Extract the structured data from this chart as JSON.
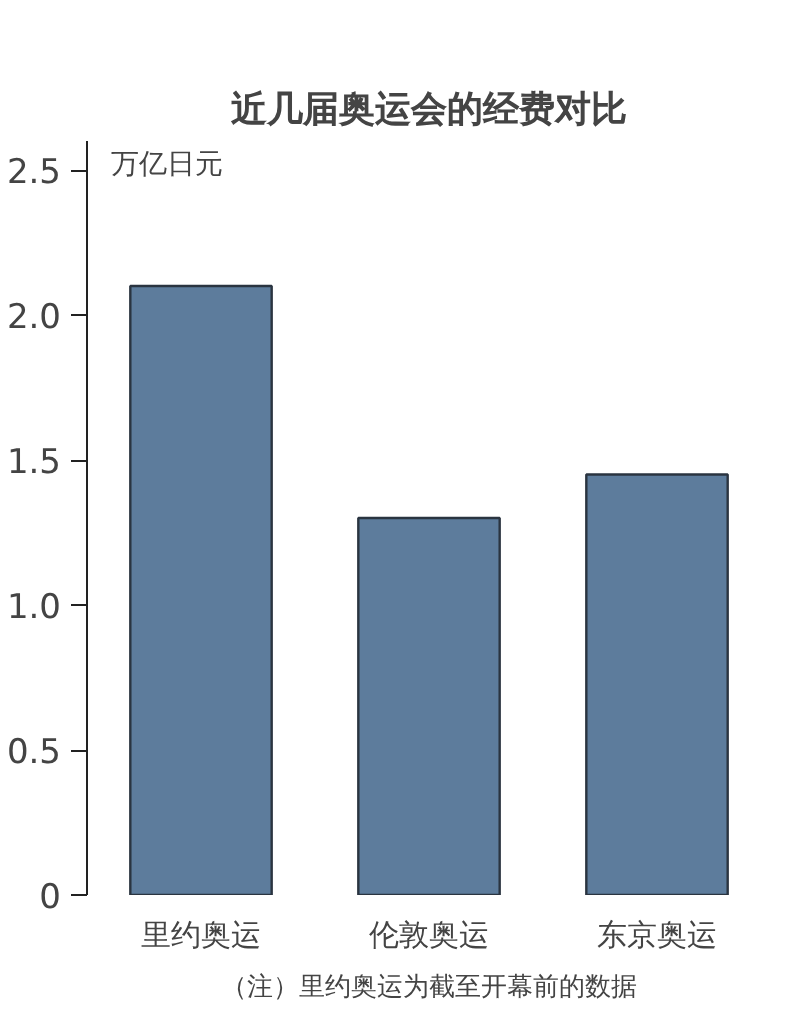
{
  "chart_data": {
    "type": "bar",
    "title": "近几届奥运会的经费对比",
    "ylabel": "万亿日元",
    "categories": [
      "里约奥运",
      "伦敦奥运",
      "东京奥运"
    ],
    "values": [
      2.1,
      1.3,
      1.45
    ],
    "color": "#5d7c9c",
    "ylim": [
      0,
      2.6
    ],
    "yticks": [
      0,
      0.5,
      {
        "value": 1,
        "label": "1.0"
      },
      1.5,
      {
        "value": 2,
        "label": "2.0"
      },
      2.5
    ],
    "grid": false,
    "annotations": [
      "（注）里约奥运为截至开幕前的数据"
    ]
  }
}
